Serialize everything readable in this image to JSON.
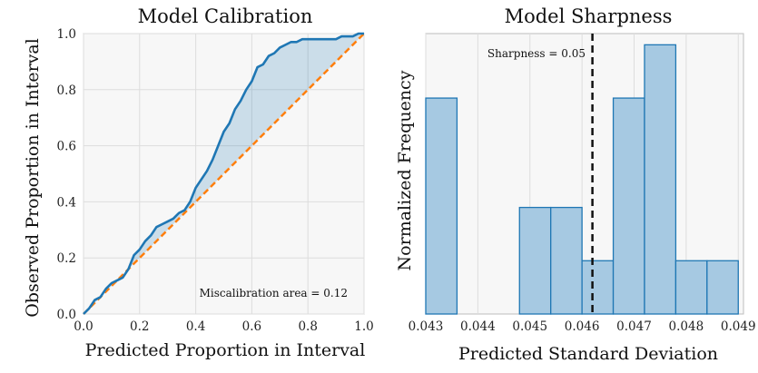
{
  "chart_data": [
    {
      "type": "line",
      "title": "Model Calibration",
      "xlabel": "Predicted Proportion in Interval",
      "ylabel": "Observed Proportion in Interval",
      "xlim": [
        0,
        1
      ],
      "ylim": [
        0,
        1
      ],
      "xticks": [
        0.0,
        0.2,
        0.4,
        0.6,
        0.8,
        1.0
      ],
      "xtick_labels": [
        "0.0",
        "0.2",
        "0.4",
        "0.6",
        "0.8",
        "1.0"
      ],
      "yticks": [
        0.0,
        0.2,
        0.4,
        0.6,
        0.8,
        1.0
      ],
      "ytick_labels": [
        "0.0",
        "0.2",
        "0.4",
        "0.6",
        "0.8",
        "1.0"
      ],
      "grid": true,
      "annotation": "Miscalibration area = 0.12",
      "colors": {
        "calibration": "#1f77b4",
        "ideal": "#ff7f0e",
        "fill": "#1f77b4"
      },
      "series": [
        {
          "name": "calibration",
          "x": [
            0.0,
            0.02,
            0.04,
            0.06,
            0.08,
            0.1,
            0.12,
            0.14,
            0.16,
            0.18,
            0.2,
            0.22,
            0.24,
            0.26,
            0.28,
            0.3,
            0.32,
            0.34,
            0.36,
            0.38,
            0.4,
            0.42,
            0.44,
            0.46,
            0.48,
            0.5,
            0.52,
            0.54,
            0.56,
            0.58,
            0.6,
            0.62,
            0.64,
            0.66,
            0.68,
            0.7,
            0.72,
            0.74,
            0.76,
            0.78,
            0.8,
            0.82,
            0.84,
            0.86,
            0.88,
            0.9,
            0.92,
            0.94,
            0.96,
            0.98,
            1.0
          ],
          "y": [
            0.0,
            0.02,
            0.05,
            0.06,
            0.09,
            0.11,
            0.12,
            0.13,
            0.16,
            0.21,
            0.23,
            0.26,
            0.28,
            0.31,
            0.32,
            0.33,
            0.34,
            0.36,
            0.37,
            0.4,
            0.45,
            0.48,
            0.51,
            0.55,
            0.6,
            0.65,
            0.68,
            0.73,
            0.76,
            0.8,
            0.83,
            0.88,
            0.89,
            0.92,
            0.93,
            0.95,
            0.96,
            0.97,
            0.97,
            0.98,
            0.98,
            0.98,
            0.98,
            0.98,
            0.98,
            0.98,
            0.99,
            0.99,
            0.99,
            1.0,
            1.0
          ]
        },
        {
          "name": "ideal",
          "x": [
            0.0,
            1.0
          ],
          "y": [
            0.0,
            1.0
          ]
        }
      ]
    },
    {
      "type": "bar",
      "title": "Model Sharpness",
      "xlabel": "Predicted Standard Deviation",
      "ylabel": "Normalized Frequency",
      "xlim": [
        0.043,
        0.0491
      ],
      "ylim": [
        0,
        1.0
      ],
      "xticks": [
        0.043,
        0.044,
        0.045,
        0.046,
        0.047,
        0.048,
        0.049
      ],
      "xtick_labels": [
        "0.043",
        "0.044",
        "0.045",
        "0.046",
        "0.047",
        "0.048",
        "0.049"
      ],
      "grid": true,
      "annotation": "Sharpness = 0.05",
      "sharpness_x": 0.0462,
      "colors": {
        "bar_fill": "#a6c9e2",
        "bar_edge": "#1f77b4",
        "vline": "#111111"
      },
      "bin_edges": [
        0.043,
        0.0436,
        0.0442,
        0.0448,
        0.0454,
        0.046,
        0.0466,
        0.0472,
        0.0478,
        0.0484,
        0.049
      ],
      "values": [
        0.77,
        0.0,
        0.0,
        0.38,
        0.38,
        0.19,
        0.77,
        0.96,
        0.19,
        0.19
      ]
    }
  ]
}
